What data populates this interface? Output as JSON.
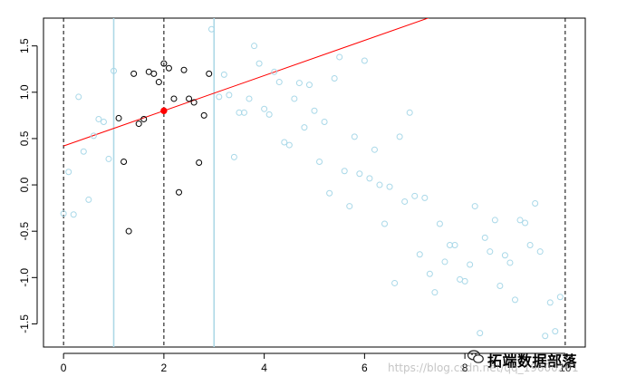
{
  "chart_data": {
    "type": "scatter",
    "xlim": [
      -0.4,
      10.4
    ],
    "ylim": [
      -1.75,
      1.8
    ],
    "x_ticks": [
      0,
      2,
      4,
      6,
      8,
      10
    ],
    "y_ticks": [
      -1.5,
      -1.0,
      -0.5,
      0.0,
      0.5,
      1.0,
      1.5
    ],
    "x_tick_labels": [
      "0",
      "2",
      "4",
      "6",
      "8",
      "10"
    ],
    "y_tick_labels": [
      "-1.5",
      "-1.0",
      "-0.5",
      "0.0",
      "0.5",
      "1.0",
      "1.5"
    ],
    "colors": {
      "background_points": "#a9d8e8",
      "window_points": "#000000",
      "fit_line": "#ff0000",
      "center_point": "#ff0000",
      "window_lines": "#add8e6",
      "dashed_lines": "#000000"
    },
    "series": [
      {
        "values": [
          [
            0.0,
            -0.31
          ],
          [
            0.1,
            0.14
          ],
          [
            0.2,
            -0.32
          ],
          [
            0.3,
            0.95
          ],
          [
            0.4,
            0.36
          ],
          [
            0.5,
            -0.16
          ],
          [
            0.6,
            0.53
          ],
          [
            0.7,
            0.71
          ],
          [
            0.8,
            0.68
          ],
          [
            0.9,
            0.28
          ],
          [
            1.0,
            1.23
          ],
          [
            2.95,
            1.68
          ],
          [
            3.1,
            0.95
          ],
          [
            3.2,
            1.19
          ],
          [
            3.3,
            0.97
          ],
          [
            3.4,
            0.3
          ],
          [
            3.5,
            0.78
          ],
          [
            3.6,
            0.78
          ],
          [
            3.7,
            0.93
          ],
          [
            3.8,
            1.5
          ],
          [
            3.9,
            1.31
          ],
          [
            4.0,
            0.82
          ],
          [
            4.1,
            0.76
          ],
          [
            4.2,
            1.22
          ],
          [
            4.3,
            1.11
          ],
          [
            4.4,
            0.46
          ],
          [
            4.5,
            0.43
          ],
          [
            4.6,
            0.93
          ],
          [
            4.7,
            1.1
          ],
          [
            4.8,
            0.62
          ],
          [
            4.9,
            1.08
          ],
          [
            5.0,
            0.8
          ],
          [
            5.1,
            0.25
          ],
          [
            5.2,
            0.68
          ],
          [
            5.3,
            -0.09
          ],
          [
            5.4,
            1.15
          ],
          [
            5.5,
            1.38
          ],
          [
            5.6,
            0.15
          ],
          [
            5.7,
            -0.23
          ],
          [
            5.8,
            0.52
          ],
          [
            5.9,
            0.12
          ],
          [
            6.0,
            1.34
          ],
          [
            6.1,
            0.07
          ],
          [
            6.2,
            0.38
          ],
          [
            6.3,
            0.0
          ],
          [
            6.4,
            -0.42
          ],
          [
            6.5,
            -0.02
          ],
          [
            6.6,
            -1.06
          ],
          [
            6.7,
            0.52
          ],
          [
            6.8,
            -0.18
          ],
          [
            6.9,
            0.78
          ],
          [
            7.0,
            -0.12
          ],
          [
            7.1,
            -0.75
          ],
          [
            7.2,
            -0.14
          ],
          [
            7.3,
            -0.96
          ],
          [
            7.4,
            -1.16
          ],
          [
            7.5,
            -0.42
          ],
          [
            7.6,
            -0.83
          ],
          [
            7.7,
            -0.65
          ],
          [
            7.8,
            -0.65
          ],
          [
            7.9,
            -1.02
          ],
          [
            8.0,
            -1.04
          ],
          [
            8.1,
            -0.86
          ],
          [
            8.2,
            -0.23
          ],
          [
            8.3,
            -1.6
          ],
          [
            8.4,
            -0.57
          ],
          [
            8.5,
            -0.72
          ],
          [
            8.6,
            -0.38
          ],
          [
            8.7,
            -1.09
          ],
          [
            8.8,
            -0.76
          ],
          [
            8.9,
            -0.84
          ],
          [
            9.0,
            -1.24
          ],
          [
            9.1,
            -0.38
          ],
          [
            9.2,
            -0.41
          ],
          [
            9.3,
            -0.65
          ],
          [
            9.4,
            -0.2
          ],
          [
            9.5,
            -0.72
          ],
          [
            9.6,
            -1.63
          ],
          [
            9.7,
            -1.27
          ],
          [
            9.8,
            -1.58
          ],
          [
            9.9,
            -1.21
          ]
        ]
      },
      {
        "values": [
          [
            1.1,
            0.72
          ],
          [
            1.2,
            0.25
          ],
          [
            1.3,
            -0.5
          ],
          [
            1.4,
            1.2
          ],
          [
            1.5,
            0.66
          ],
          [
            1.6,
            0.71
          ],
          [
            1.7,
            1.22
          ],
          [
            1.8,
            1.2
          ],
          [
            1.9,
            1.11
          ],
          [
            2.0,
            1.31
          ],
          [
            2.1,
            1.26
          ],
          [
            2.2,
            0.93
          ],
          [
            2.3,
            -0.08
          ],
          [
            2.4,
            1.24
          ],
          [
            2.5,
            0.93
          ],
          [
            2.6,
            0.89
          ],
          [
            2.7,
            0.24
          ],
          [
            2.8,
            0.75
          ],
          [
            2.9,
            1.2
          ]
        ]
      }
    ],
    "fit_line": {
      "intercept": 0.42,
      "slope": 0.19,
      "x_range": [
        0.0,
        10.4
      ]
    },
    "center_point": [
      2.0,
      0.8
    ],
    "dashed_vlines": [
      0,
      2,
      10
    ],
    "solid_vlines": [
      1,
      3
    ],
    "grid": false,
    "legend": "none",
    "title": "",
    "xlabel": "",
    "ylabel": ""
  },
  "watermark": {
    "logo_text": "拓端数据部落",
    "url_text": "https://blog.csdn.net/qq_19600291",
    "icon": "wechat-icon"
  }
}
